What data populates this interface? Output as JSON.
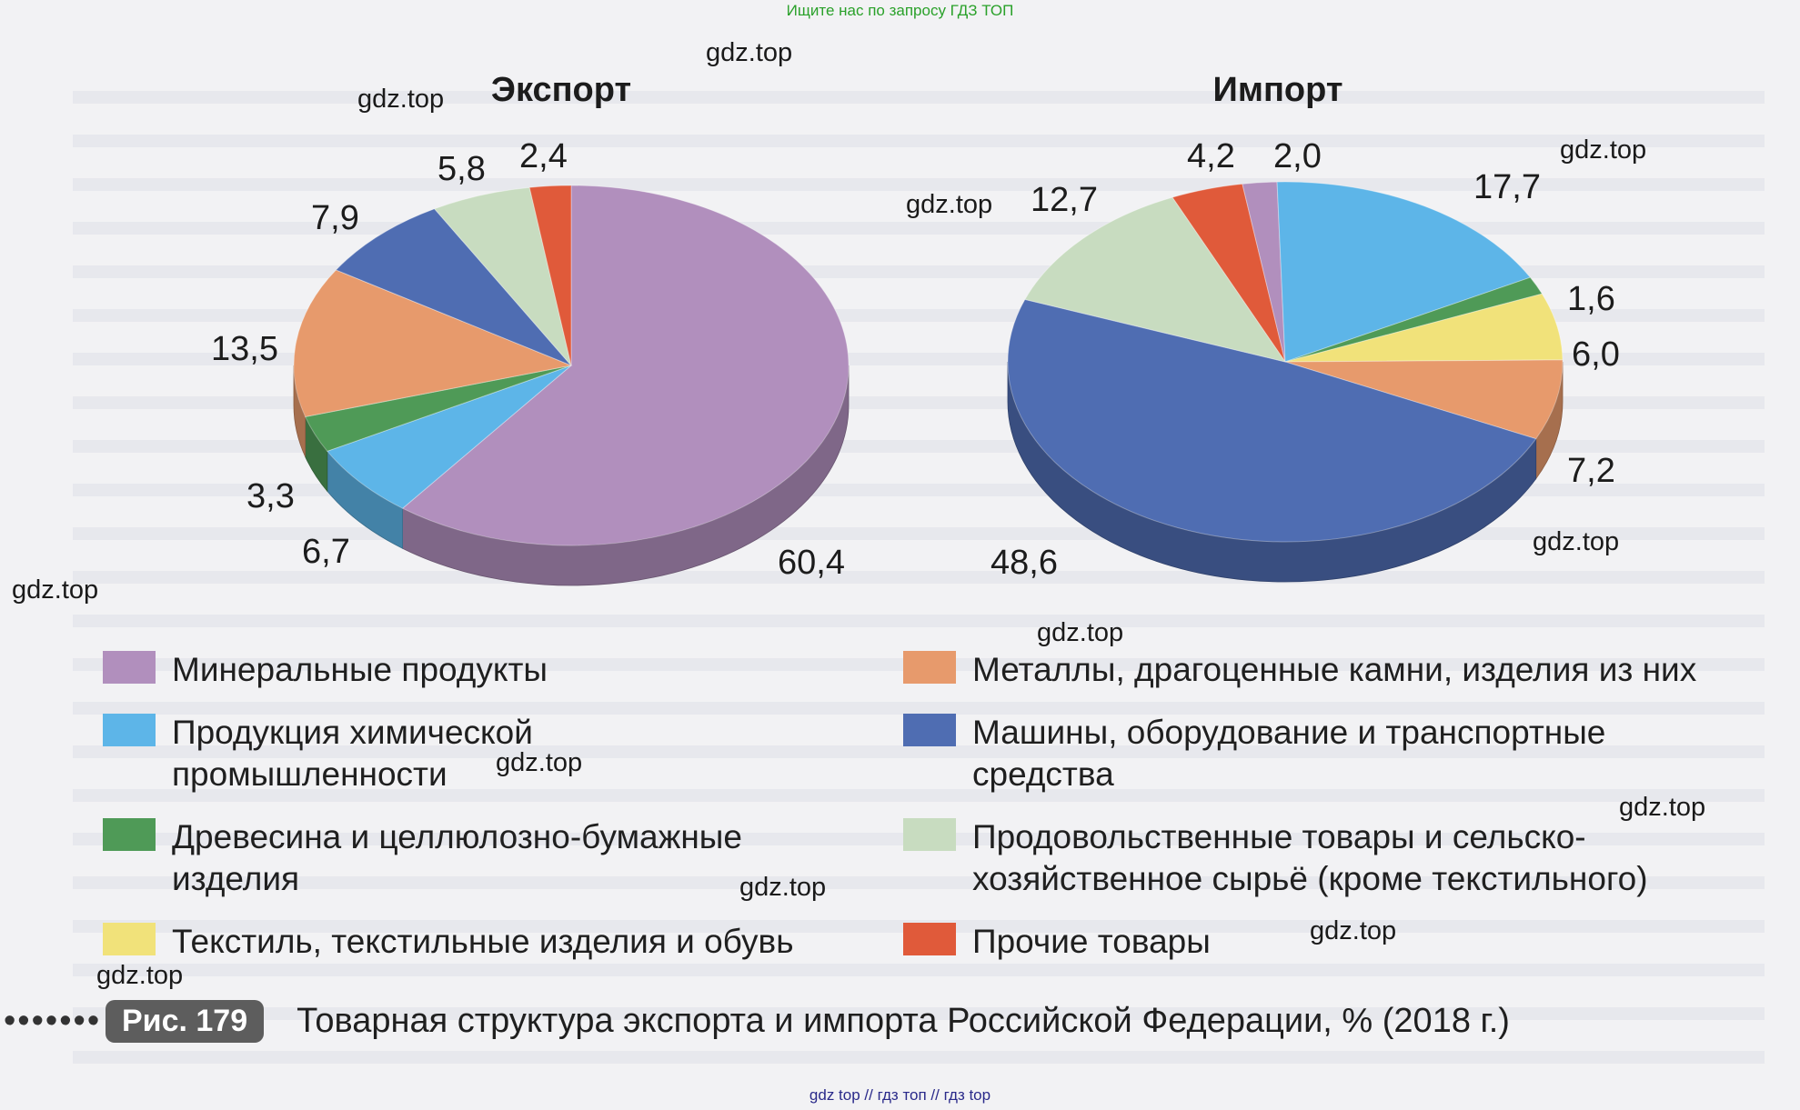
{
  "header_note": "Ищите нас по запросу ГДЗ ТОП",
  "footer_note": "gdz top // гдз топ // гдз top",
  "watermark_text": "gdz.top",
  "figure": {
    "badge": "Рис. 179",
    "caption": "Товарная структура экспорта и импорта Российской Федерации, % (2018 г.)"
  },
  "legend": [
    {
      "label": "Минеральные продукты",
      "color": "#b18fbd"
    },
    {
      "label": "Металлы, драгоценные камни, изделия из них",
      "color": "#e79a6c"
    },
    {
      "label": "Продукция химической промышленности",
      "color": "#5db5e8"
    },
    {
      "label": "Машины, оборудование и транспортные средства",
      "color": "#4f6db2"
    },
    {
      "label": "Древесина и целлюлозно-бумажные изделия",
      "color": "#4f9a57"
    },
    {
      "label": "Продовольственные товары и сельско-хозяйственное сырьё (кроме текстильного)",
      "color": "#c8dcc0"
    },
    {
      "label": "Текстиль, текстильные изделия и обувь",
      "color": "#f1e27a"
    },
    {
      "label": "Прочие товары",
      "color": "#e05a3a"
    }
  ],
  "chart_data": [
    {
      "type": "pie",
      "title": "Экспорт",
      "categories": [
        "Минеральные продукты",
        "Продукция химической промышленности",
        "Древесина и целлюлозно-бумажные изделия",
        "Металлы, драгоценные камни, изделия из них",
        "Машины, оборудование и транспортные средства",
        "Продовольственные товары и сельско-хозяйственное сырьё (кроме текстильного)",
        "Прочие товары"
      ],
      "values": [
        60.4,
        6.7,
        3.3,
        13.5,
        7.9,
        5.8,
        2.4
      ],
      "labels": [
        "60,4",
        "6,7",
        "3,3",
        "13,5",
        "7,9",
        "5,8",
        "2,4"
      ],
      "colors": [
        "#b18fbd",
        "#5db5e8",
        "#4f9a57",
        "#e79a6c",
        "#4f6db2",
        "#c8dcc0",
        "#e05a3a"
      ]
    },
    {
      "type": "pie",
      "title": "Импорт",
      "categories": [
        "Прочие товары",
        "Минеральные продукты",
        "Продукция химической промышленности",
        "Древесина и целлюлозно-бумажные изделия",
        "Текстиль, текстильные изделия и обувь",
        "Металлы, драгоценные камни, изделия из них",
        "Машины, оборудование и транспортные средства",
        "Продовольственные товары и сельско-хозяйственное сырьё (кроме текстильного)"
      ],
      "values": [
        4.2,
        2.0,
        17.7,
        1.6,
        6.0,
        7.2,
        48.6,
        12.7
      ],
      "labels": [
        "4,2",
        "2,0",
        "17,7",
        "1,6",
        "6,0",
        "7,2",
        "48,6",
        "12,7"
      ],
      "colors": [
        "#e05a3a",
        "#b18fbd",
        "#5db5e8",
        "#4f9a57",
        "#f1e27a",
        "#e79a6c",
        "#4f6db2",
        "#c8dcc0"
      ]
    }
  ]
}
